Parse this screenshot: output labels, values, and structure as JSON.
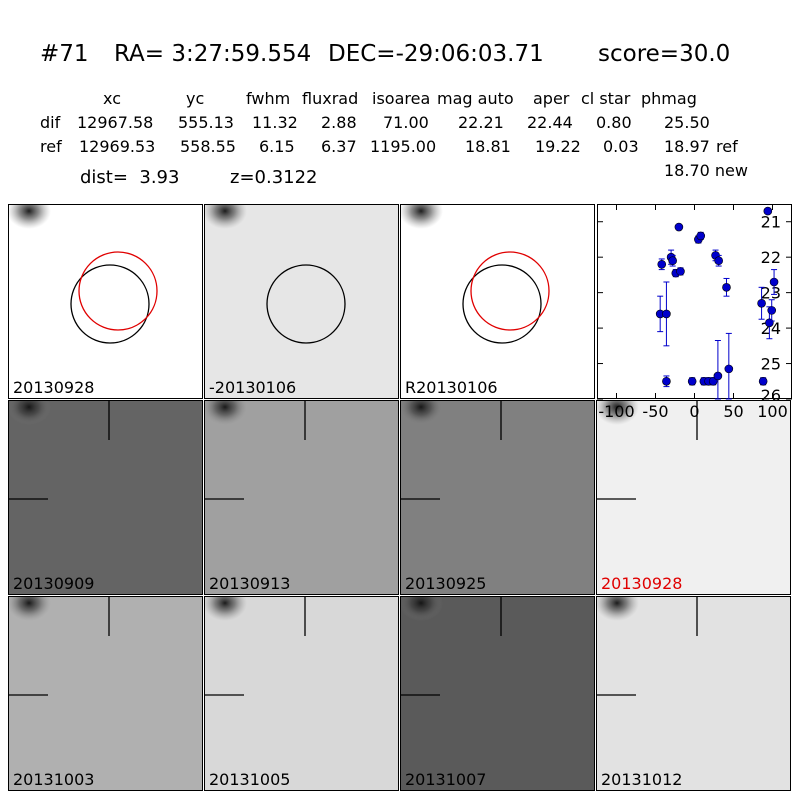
{
  "header": {
    "id": "#71",
    "ra": "RA= 3:27:59.554",
    "dec": "DEC=-29:06:03.71",
    "score": "score=30.0"
  },
  "table": {
    "columns": [
      "xc",
      "yc",
      "fwhm",
      "fluxrad",
      "isoarea",
      "mag auto",
      "aper",
      "cl star",
      "phmag"
    ],
    "rows": [
      {
        "label": "dif",
        "values": [
          "12967.58",
          "555.13",
          "11.32",
          "2.88",
          "71.00",
          "22.21",
          "22.44",
          "0.80",
          "25.50"
        ],
        "extra": ""
      },
      {
        "label": "ref",
        "values": [
          "12969.53",
          "558.55",
          "6.15",
          "6.37",
          "1195.00",
          "18.81",
          "19.22",
          "0.03",
          "18.97"
        ],
        "extra": "ref"
      }
    ],
    "new_mag": "18.70 new",
    "dist": "dist=  3.93",
    "z": "z=0.3122"
  },
  "stamps": [
    {
      "label": "20130928",
      "bg": "#ffffff",
      "marker": "circles",
      "highlight": false
    },
    {
      "label": "-20130106",
      "bg": "#e6e6e6",
      "marker": "circle",
      "highlight": false
    },
    {
      "label": "R20130106",
      "bg": "#ffffff",
      "marker": "circles",
      "highlight": false
    },
    {
      "label": "20130909",
      "bg": "#646464",
      "marker": "ticks",
      "highlight": false
    },
    {
      "label": "20130913",
      "bg": "#a0a0a0",
      "marker": "ticks",
      "highlight": false
    },
    {
      "label": "20130925",
      "bg": "#808080",
      "marker": "ticks",
      "highlight": false
    },
    {
      "label": "20130928",
      "bg": "#f0f0f0",
      "marker": "ticks",
      "highlight": true
    },
    {
      "label": "20131003",
      "bg": "#b0b0b0",
      "marker": "ticks",
      "highlight": false
    },
    {
      "label": "20131005",
      "bg": "#d8d8d8",
      "marker": "ticks",
      "highlight": false
    },
    {
      "label": "20131007",
      "bg": "#5a5a5a",
      "marker": "ticks",
      "highlight": false
    },
    {
      "label": "20131012",
      "bg": "#e2e2e2",
      "marker": "ticks",
      "highlight": false
    }
  ],
  "colors": {
    "circle_red": "#e00000",
    "point_blue": "#0000cc",
    "highlight_label": "#e00000"
  },
  "chart_data": {
    "type": "scatter",
    "title": "",
    "xlabel": "",
    "ylabel": "",
    "xlim": [
      -125,
      125
    ],
    "ylim": [
      26,
      20.5
    ],
    "xticks": [
      -100,
      -50,
      0,
      50,
      100
    ],
    "yticks": [
      21,
      22,
      23,
      24,
      25,
      26
    ],
    "points": [
      {
        "x": -42,
        "y": 22.2,
        "err": 0.15
      },
      {
        "x": -44,
        "y": 23.6,
        "err": 0.5
      },
      {
        "x": -36,
        "y": 23.6,
        "err": 0.9
      },
      {
        "x": -36,
        "y": 25.5,
        "err": 0.15
      },
      {
        "x": -30,
        "y": 22.0,
        "err": 0.2
      },
      {
        "x": -28,
        "y": 22.1,
        "err": 0.15
      },
      {
        "x": -24,
        "y": 22.45,
        "err": 0.1
      },
      {
        "x": -18,
        "y": 22.4,
        "err": 0.1
      },
      {
        "x": -20,
        "y": 21.15,
        "err": 0.05
      },
      {
        "x": -3,
        "y": 25.5,
        "err": 0.1
      },
      {
        "x": 5,
        "y": 21.5,
        "err": 0.1
      },
      {
        "x": 8,
        "y": 21.4,
        "err": 0.1
      },
      {
        "x": 12,
        "y": 25.5,
        "err": 0.1
      },
      {
        "x": 18,
        "y": 25.5,
        "err": 0.1
      },
      {
        "x": 24,
        "y": 25.5,
        "err": 0.1
      },
      {
        "x": 27,
        "y": 21.95,
        "err": 0.15
      },
      {
        "x": 31,
        "y": 22.1,
        "err": 0.15
      },
      {
        "x": 30,
        "y": 25.35,
        "err": 1.0
      },
      {
        "x": 41,
        "y": 22.85,
        "err": 0.25
      },
      {
        "x": 44,
        "y": 25.15,
        "err": 1.0
      },
      {
        "x": 86,
        "y": 23.3,
        "err": 0.45
      },
      {
        "x": 88,
        "y": 25.5,
        "err": 0.1
      },
      {
        "x": 94,
        "y": 20.7,
        "err": 0.05
      },
      {
        "x": 96,
        "y": 23.85,
        "err": 0.45
      },
      {
        "x": 99,
        "y": 23.5,
        "err": 0.3
      },
      {
        "x": 102,
        "y": 22.7,
        "err": 0.35
      }
    ]
  }
}
